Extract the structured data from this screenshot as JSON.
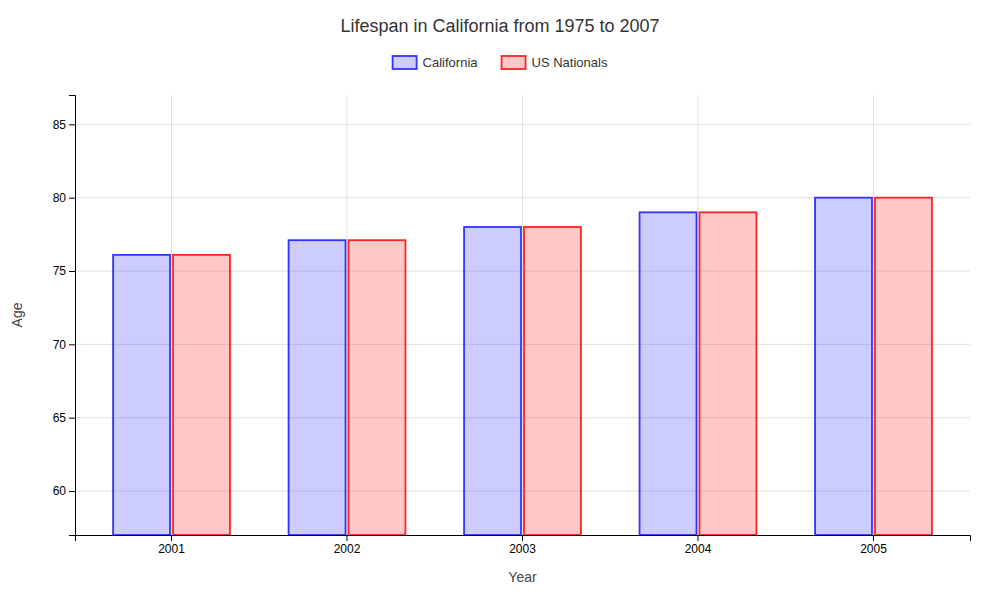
{
  "chart_data": {
    "type": "bar",
    "title": "Lifespan in California from 1975 to 2007",
    "x_label": "Year",
    "y_label": "Age",
    "categories": [
      "2001",
      "2002",
      "2003",
      "2004",
      "2005"
    ],
    "series": [
      {
        "name": "California",
        "color": "#3333FF",
        "values": [
          76.1,
          77.1,
          78.0,
          79.0,
          80.0
        ]
      },
      {
        "name": "US Nationals",
        "color": "#FF2222",
        "values": [
          76.1,
          77.1,
          78.0,
          79.0,
          80.0
        ]
      }
    ],
    "ylim": [
      57,
      87
    ],
    "yticks": [
      60,
      65,
      70,
      75,
      80,
      85
    ],
    "grid": true,
    "legend": "top"
  }
}
